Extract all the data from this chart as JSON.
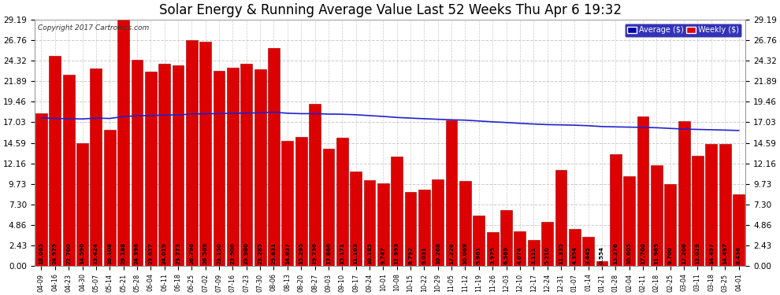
{
  "title": "Solar Energy & Running Average Value Last 52 Weeks Thu Apr 6 19:32",
  "copyright": "Copyright 2017 Cartronics.com",
  "categories": [
    "04-09",
    "04-16",
    "04-23",
    "04-30",
    "05-07",
    "05-14",
    "05-21",
    "05-28",
    "06-04",
    "06-11",
    "06-18",
    "06-25",
    "07-02",
    "07-09",
    "07-16",
    "07-23",
    "07-30",
    "08-06",
    "08-13",
    "08-20",
    "08-27",
    "09-03",
    "09-10",
    "09-17",
    "09-24",
    "10-01",
    "10-08",
    "10-15",
    "10-22",
    "10-29",
    "11-05",
    "11-12",
    "11-19",
    "11-26",
    "12-03",
    "12-10",
    "12-17",
    "12-24",
    "12-31",
    "01-07",
    "01-14",
    "01-21",
    "01-28",
    "02-04",
    "02-11",
    "02-18",
    "02-25",
    "03-04",
    "03-11",
    "03-18",
    "03-25",
    "04-01"
  ],
  "bar_values": [
    18.065,
    24.925,
    22.7,
    14.59,
    23.424,
    16.108,
    29.188,
    24.396,
    23.027,
    24.019,
    23.773,
    26.796,
    26.569,
    23.15,
    23.5,
    23.98,
    23.285,
    25.831,
    14.837,
    15.295,
    19.236,
    13.866,
    15.171,
    11.163,
    10.185,
    9.747,
    12.993,
    8.792,
    9.031,
    10.268,
    17.226,
    10.069,
    5.961,
    3.975,
    6.569,
    4.074,
    3.111,
    5.21,
    11.335,
    4.354,
    3.445,
    0.554,
    13.276,
    10.605,
    17.76,
    11.965,
    9.7,
    17.206,
    13.029,
    14.497,
    14.497,
    8.436
  ],
  "avg_values": [
    17.55,
    17.48,
    17.45,
    17.42,
    17.52,
    17.48,
    17.7,
    17.8,
    17.82,
    17.88,
    17.9,
    18.0,
    18.05,
    18.05,
    18.1,
    18.12,
    18.15,
    18.22,
    18.1,
    18.05,
    18.05,
    18.0,
    17.98,
    17.92,
    17.82,
    17.72,
    17.6,
    17.52,
    17.45,
    17.38,
    17.32,
    17.28,
    17.18,
    17.08,
    17.0,
    16.9,
    16.82,
    16.75,
    16.72,
    16.68,
    16.62,
    16.52,
    16.48,
    16.45,
    16.42,
    16.38,
    16.3,
    16.22,
    16.18,
    16.14,
    16.1,
    16.05
  ],
  "bar_color": "#dd0000",
  "bar_edge_color": "#990000",
  "avg_line_color": "#2222cc",
  "ytick_labels": [
    "0.00",
    "2.43",
    "4.86",
    "7.30",
    "9.73",
    "12.16",
    "14.59",
    "17.03",
    "19.46",
    "21.89",
    "24.32",
    "26.76",
    "29.19"
  ],
  "ytick_values": [
    0.0,
    2.43,
    4.86,
    7.3,
    9.73,
    12.16,
    14.59,
    17.03,
    19.46,
    21.89,
    24.32,
    26.76,
    29.19
  ],
  "ymax": 29.19,
  "bg_color": "#ffffff",
  "plot_bg_color": "#ffffff",
  "grid_color": "#cccccc",
  "title_fontsize": 12,
  "bar_label_fontsize": 5.2,
  "xtick_fontsize": 5.8,
  "ytick_fontsize": 7.5,
  "legend_avg_label": "Average ($)",
  "legend_weekly_label": "Weekly ($)"
}
